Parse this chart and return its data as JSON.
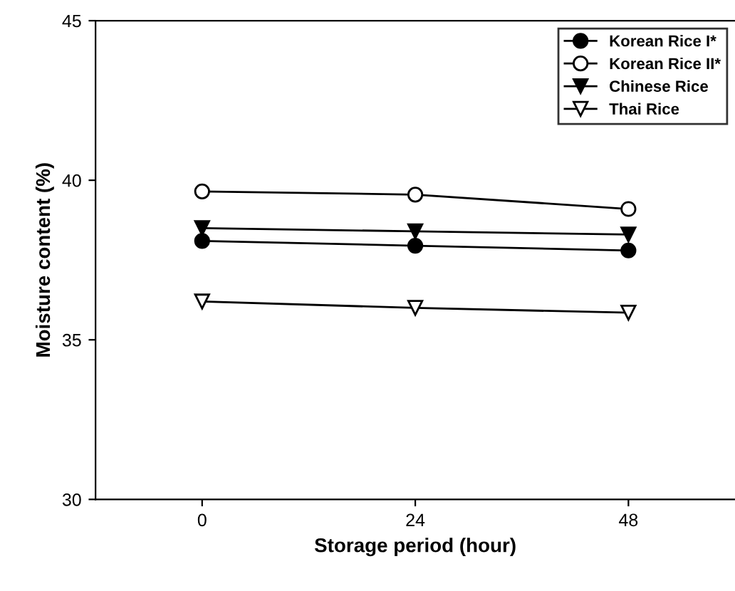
{
  "chart_data": {
    "type": "line",
    "xlabel": "Storage period (hour)",
    "ylabel": "Moisture content (%)",
    "x": [
      0,
      24,
      48
    ],
    "xlim": [
      -12,
      60
    ],
    "xticks": [
      0,
      24,
      48
    ],
    "ylim": [
      30,
      45
    ],
    "yticks": [
      30,
      35,
      40,
      45
    ],
    "grid": false,
    "legend": "top right",
    "line_style": "solid",
    "series": [
      {
        "name": "Korean Rice I*",
        "color": "#000000",
        "marker": "circle",
        "values": [
          38.1,
          37.95,
          37.8
        ]
      },
      {
        "name": "Korean Rice II*",
        "color": "#000000",
        "marker": "circle",
        "values": [
          39.65,
          39.55,
          39.1
        ]
      },
      {
        "name": "Chinese Rice",
        "color": "#000000",
        "marker": "triangle",
        "values": [
          38.5,
          38.4,
          38.3
        ]
      },
      {
        "name": "Thai Rice",
        "color": "#000000",
        "marker": "triangle",
        "values": [
          36.2,
          36.0,
          35.85
        ]
      }
    ]
  }
}
